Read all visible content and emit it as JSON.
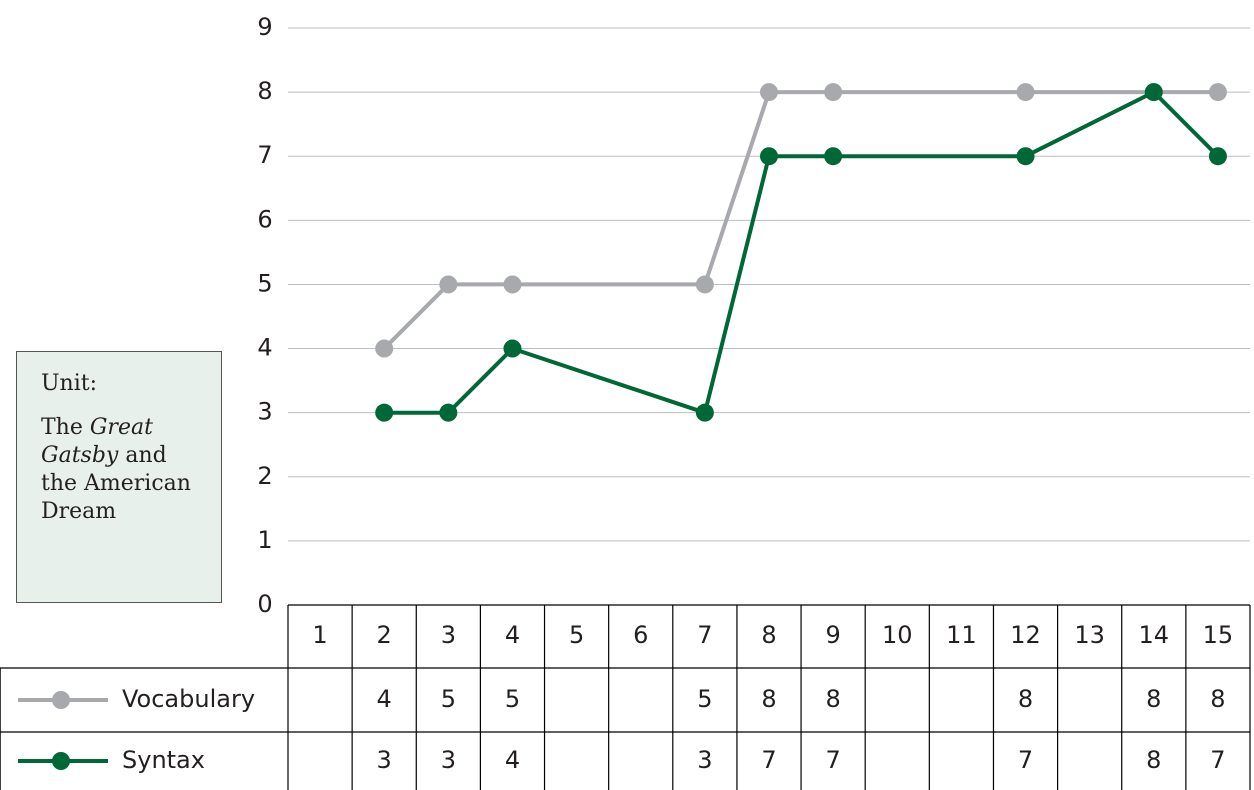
{
  "chart_data": {
    "type": "line",
    "annotation": {
      "label": "Unit:",
      "parts": [
        "The ",
        "Great Gatsby",
        " and the American Dream"
      ]
    },
    "xlim": [
      0.5,
      15.5
    ],
    "xticks": [
      1,
      2,
      3,
      4,
      5,
      6,
      7,
      8,
      9,
      10,
      11,
      12,
      13,
      14,
      15
    ],
    "ylim": [
      0,
      9
    ],
    "yticks": [
      0,
      1,
      2,
      3,
      4,
      5,
      6,
      7,
      8,
      9
    ],
    "grid": true,
    "series": [
      {
        "name": "Vocabulary",
        "color": "#a7a9ac",
        "x": [
          2,
          3,
          4,
          7,
          8,
          9,
          12,
          14,
          15
        ],
        "values": [
          4,
          5,
          5,
          5,
          8,
          8,
          8,
          8,
          8
        ]
      },
      {
        "name": "Syntax",
        "color": "#006837",
        "x": [
          2,
          3,
          4,
          7,
          8,
          9,
          12,
          14,
          15
        ],
        "values": [
          3,
          3,
          4,
          3,
          7,
          7,
          7,
          8,
          7
        ]
      }
    ]
  }
}
